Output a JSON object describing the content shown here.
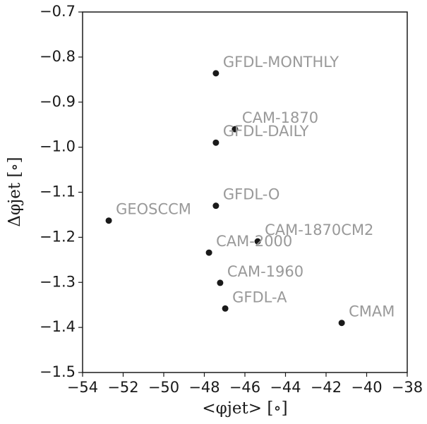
{
  "chart_data": {
    "type": "scatter",
    "xlabel": "<φjet> [∘]",
    "ylabel": "Δφjet [∘]",
    "labels": [
      "GFDL-MONTHLY",
      "CAM-1870",
      "GFDL-DAILY",
      "GFDL-O",
      "GEOSCCM",
      "CAM-1870CM2",
      "CAM-2000",
      "CAM-1960",
      "GFDL-A",
      "CMAM"
    ],
    "x": [
      -47.43,
      -46.49,
      -47.43,
      -47.43,
      -52.71,
      -45.37,
      -47.77,
      -47.22,
      -46.97,
      -41.23
    ],
    "values": [
      -0.836,
      -0.96,
      -0.99,
      -1.13,
      -1.163,
      -1.209,
      -1.234,
      -1.301,
      -1.358,
      -1.39
    ],
    "color": "#1a1a1a",
    "label_color": "#999999",
    "xlim": [
      -54,
      -38
    ],
    "ylim": [
      -1.5,
      -0.7
    ],
    "xticks": [
      {
        "value": -54,
        "label": "−54"
      },
      {
        "value": -52,
        "label": "−52"
      },
      {
        "value": -50,
        "label": "−50"
      },
      {
        "value": -48,
        "label": "−48"
      },
      {
        "value": -46,
        "label": "−46"
      },
      {
        "value": -44,
        "label": "−44"
      },
      {
        "value": -42,
        "label": "−42"
      },
      {
        "value": -40,
        "label": "−40"
      },
      {
        "value": -38,
        "label": "−38"
      }
    ],
    "yticks": [
      {
        "value": -1.5,
        "label": "−1.5"
      },
      {
        "value": -1.4,
        "label": "−1.4"
      },
      {
        "value": -1.3,
        "label": "−1.3"
      },
      {
        "value": -1.2,
        "label": "−1.2"
      },
      {
        "value": -1.1,
        "label": "−1.1"
      },
      {
        "value": -1.0,
        "label": "−1.0"
      },
      {
        "value": -0.9,
        "label": "−0.9"
      },
      {
        "value": -0.8,
        "label": "−0.8"
      },
      {
        "value": -0.7,
        "label": "−0.7"
      }
    ]
  }
}
